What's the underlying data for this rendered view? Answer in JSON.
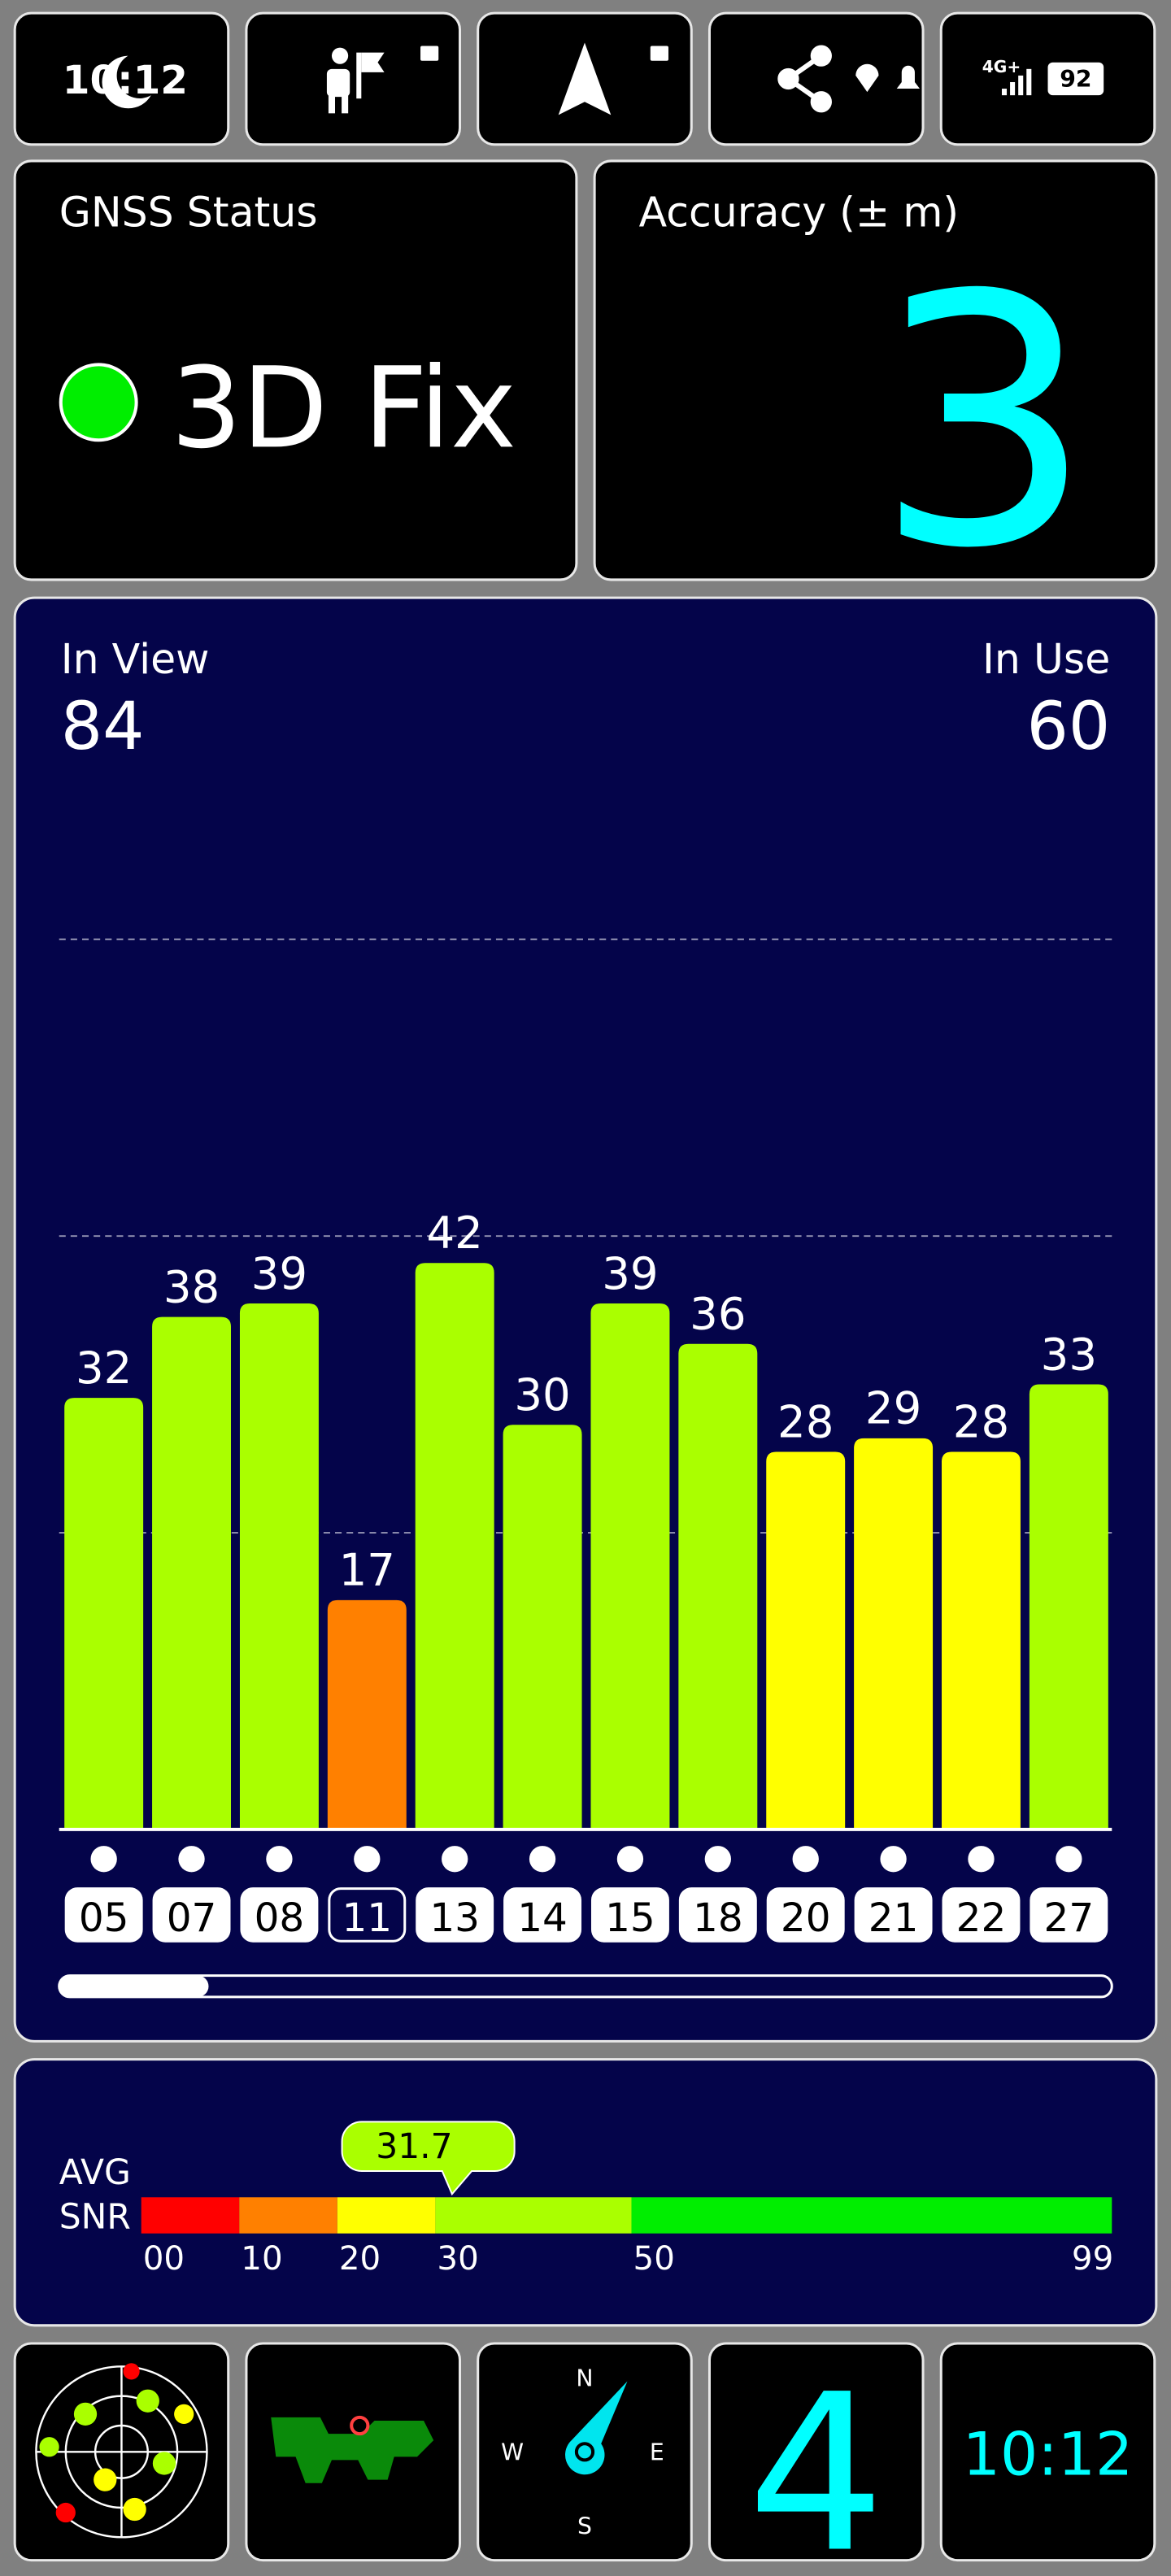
{
  "status_bar": {
    "time": "10:12",
    "network": "4G+",
    "battery": "92"
  },
  "gnss_status": {
    "label": "GNSS Status",
    "value": "3D Fix"
  },
  "accuracy": {
    "label": "Accuracy (± m)",
    "value": 3
  },
  "satellites": {
    "in_view_label": "In View",
    "in_view": 84,
    "in_use_label": "In Use",
    "in_use": 60
  },
  "snr_chart": {
    "type": "bar",
    "categories": [
      "05",
      "07",
      "08",
      "11",
      "13",
      "14",
      "15",
      "18",
      "20",
      "21",
      "22",
      "27"
    ],
    "values": [
      32,
      38,
      39,
      17,
      42,
      30,
      39,
      36,
      28,
      29,
      28,
      33
    ],
    "colors": [
      "#aaff00",
      "#aaff00",
      "#aaff00",
      "#ff8000",
      "#aaff00",
      "#aaff00",
      "#aaff00",
      "#aaff00",
      "#ffff00",
      "#ffff00",
      "#ffff00",
      "#aaff00"
    ],
    "in_use": [
      true,
      true,
      true,
      false,
      true,
      true,
      true,
      true,
      true,
      true,
      true,
      true
    ],
    "ylim": [
      0,
      66
    ],
    "gridlines": [
      22,
      44,
      66
    ]
  },
  "avg_snr": {
    "label_line1": "AVG",
    "label_line2": "SNR",
    "value": 31.7,
    "xlim": [
      0,
      99
    ],
    "ticks": [
      {
        "value": 0,
        "label": "00"
      },
      10,
      20,
      30,
      50,
      99
    ],
    "bands": [
      {
        "from": 0,
        "to": 10,
        "color": "#ff0000"
      },
      {
        "from": 10,
        "to": 20,
        "color": "#ff8000"
      },
      {
        "from": 20,
        "to": 30,
        "color": "#ffff00"
      },
      {
        "from": 30,
        "to": 50,
        "color": "#aaff00"
      },
      {
        "from": 50,
        "to": 99,
        "color": "#00ee00"
      }
    ]
  },
  "bottom": {
    "satellite_count": 4,
    "clock": "10:12",
    "compass": {
      "n": "N",
      "e": "E",
      "s": "S",
      "w": "W"
    }
  }
}
